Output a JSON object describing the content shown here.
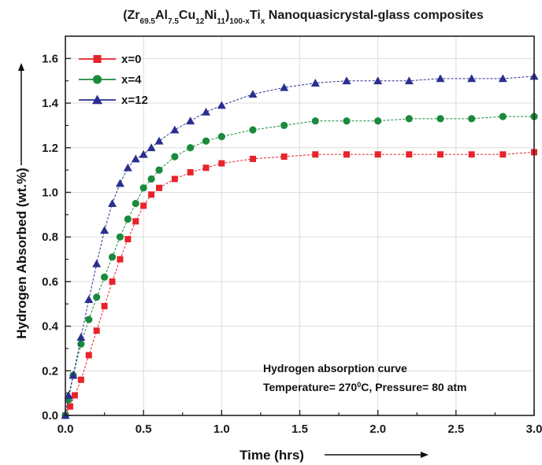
{
  "chart_data": {
    "type": "scatter",
    "title": {
      "parts": [
        {
          "t": "(Zr",
          "s": "n"
        },
        {
          "t": "69.5",
          "s": "sub"
        },
        {
          "t": "Al",
          "s": "n"
        },
        {
          "t": "7.5",
          "s": "sub"
        },
        {
          "t": "Cu",
          "s": "n"
        },
        {
          "t": "12",
          "s": "sub"
        },
        {
          "t": "Ni",
          "s": "n"
        },
        {
          "t": "11",
          "s": "sub"
        },
        {
          "t": ")",
          "s": "n"
        },
        {
          "t": "100-x",
          "s": "sub"
        },
        {
          "t": "Ti",
          "s": "n"
        },
        {
          "t": "x",
          "s": "sub"
        },
        {
          "t": " Nanoquasicrystal-glass composites",
          "s": "n"
        }
      ]
    },
    "xlabel": "Time (hrs)",
    "ylabel": "Hydrogen Absorbed (wt.%)",
    "xlim": [
      0,
      3.0
    ],
    "ylim": [
      0,
      1.7
    ],
    "xticks": [
      "0.0",
      "0.5",
      "1.0",
      "1.5",
      "2.0",
      "2.5",
      "3.0"
    ],
    "yticks": [
      "0.0",
      "0.2",
      "0.4",
      "0.6",
      "0.8",
      "1.0",
      "1.2",
      "1.4",
      "1.6"
    ],
    "legend_position": "top-left",
    "annotations": [
      "Hydrogen absorption curve",
      {
        "parts": [
          {
            "t": "Temperature= 270",
            "s": "n"
          },
          {
            "t": "0",
            "s": "sup"
          },
          {
            "t": "C, Pressure= 80 atm",
            "s": "n"
          }
        ]
      }
    ],
    "series": [
      {
        "name": "x=0",
        "color": "#e8232b",
        "marker": "square",
        "x": [
          0.0,
          0.03,
          0.06,
          0.1,
          0.15,
          0.2,
          0.25,
          0.3,
          0.35,
          0.4,
          0.45,
          0.5,
          0.55,
          0.6,
          0.7,
          0.8,
          0.9,
          1.0,
          1.2,
          1.4,
          1.6,
          1.8,
          2.0,
          2.2,
          2.4,
          2.6,
          2.8,
          3.0
        ],
        "y": [
          0.0,
          0.04,
          0.09,
          0.16,
          0.27,
          0.38,
          0.49,
          0.6,
          0.7,
          0.79,
          0.87,
          0.94,
          0.99,
          1.02,
          1.06,
          1.09,
          1.11,
          1.13,
          1.15,
          1.16,
          1.17,
          1.17,
          1.17,
          1.17,
          1.17,
          1.17,
          1.17,
          1.18
        ]
      },
      {
        "name": "x=4",
        "color": "#1b8a3c",
        "marker": "circle",
        "x": [
          0.0,
          0.02,
          0.05,
          0.1,
          0.15,
          0.2,
          0.25,
          0.3,
          0.35,
          0.4,
          0.45,
          0.5,
          0.55,
          0.6,
          0.7,
          0.8,
          0.9,
          1.0,
          1.2,
          1.4,
          1.6,
          1.8,
          2.0,
          2.2,
          2.4,
          2.6,
          2.8,
          3.0
        ],
        "y": [
          0.0,
          0.07,
          0.18,
          0.32,
          0.43,
          0.53,
          0.62,
          0.71,
          0.8,
          0.88,
          0.95,
          1.02,
          1.06,
          1.1,
          1.16,
          1.2,
          1.23,
          1.25,
          1.28,
          1.3,
          1.32,
          1.32,
          1.32,
          1.33,
          1.33,
          1.33,
          1.34,
          1.34
        ]
      },
      {
        "name": "x=12",
        "color": "#2a2f8f",
        "marker": "triangle",
        "x": [
          0.0,
          0.02,
          0.05,
          0.1,
          0.15,
          0.2,
          0.25,
          0.3,
          0.35,
          0.4,
          0.45,
          0.5,
          0.55,
          0.6,
          0.7,
          0.8,
          0.9,
          1.0,
          1.2,
          1.4,
          1.6,
          1.8,
          2.0,
          2.2,
          2.4,
          2.6,
          2.8,
          3.0
        ],
        "y": [
          0.0,
          0.09,
          0.18,
          0.35,
          0.52,
          0.68,
          0.83,
          0.95,
          1.04,
          1.11,
          1.15,
          1.17,
          1.2,
          1.23,
          1.28,
          1.32,
          1.36,
          1.39,
          1.44,
          1.47,
          1.49,
          1.5,
          1.5,
          1.5,
          1.51,
          1.51,
          1.51,
          1.52
        ]
      }
    ]
  }
}
